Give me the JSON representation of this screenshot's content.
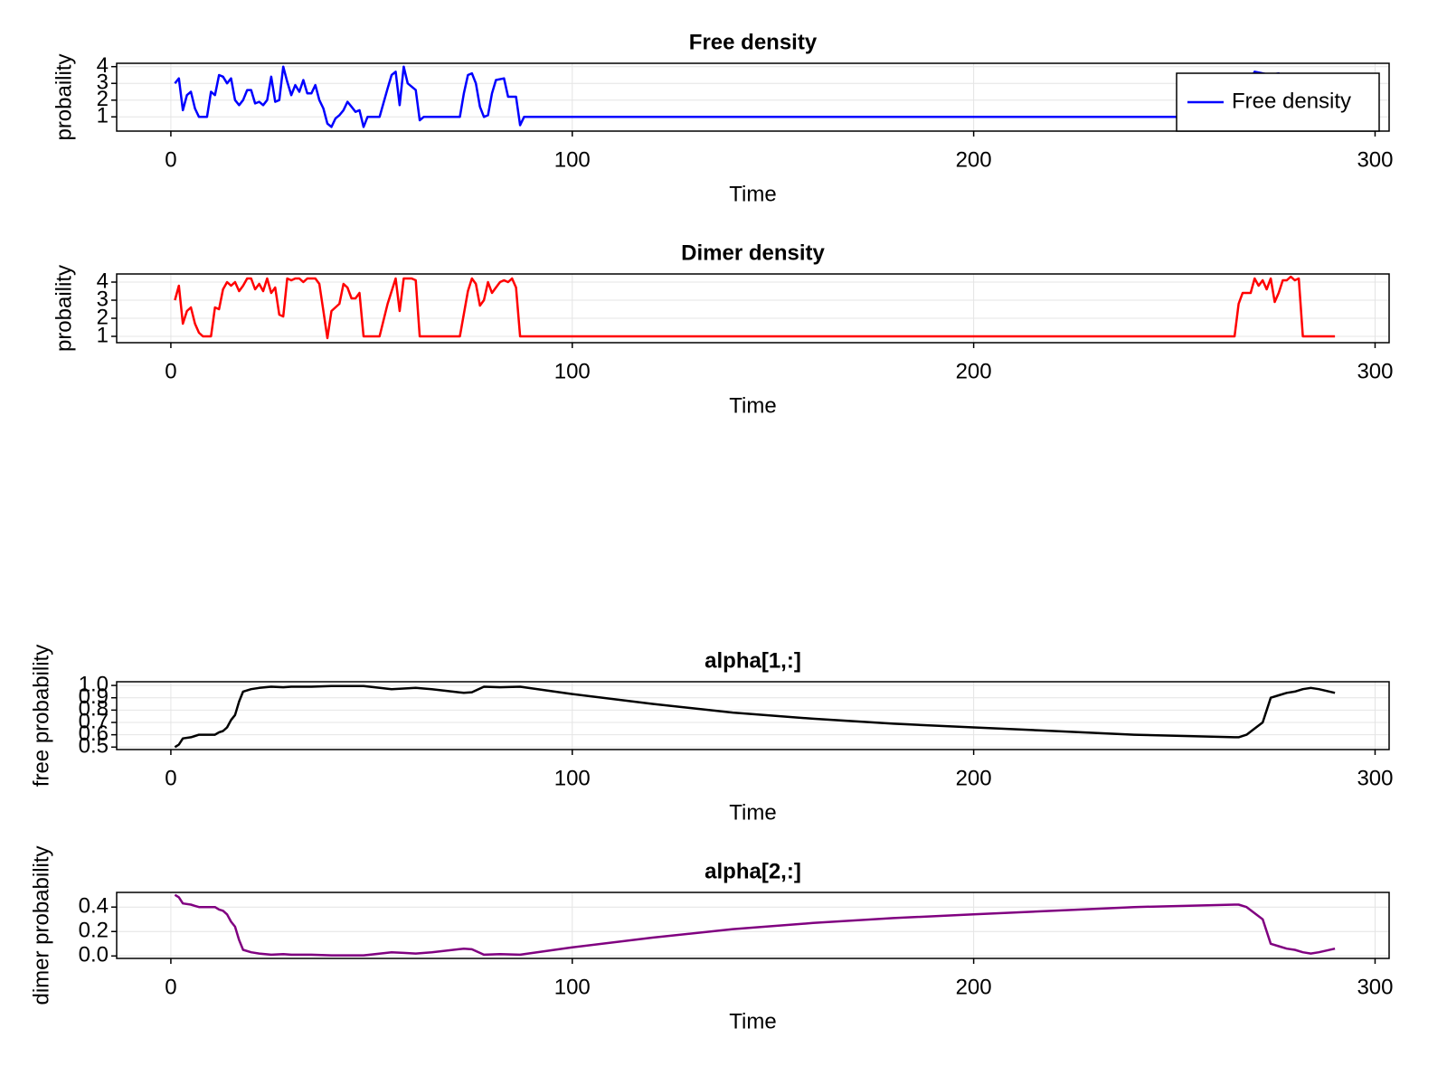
{
  "chart_data": [
    {
      "type": "line",
      "title": "Free density",
      "xlabel": "Time",
      "ylabel": "probaility",
      "xlim": [
        -13.5,
        303.5
      ],
      "xticks": [
        0,
        100,
        200,
        300
      ],
      "ylim": [
        0.15,
        4.2
      ],
      "yticks": [
        1,
        2,
        3,
        4
      ],
      "grid": true,
      "legend": "top-right",
      "x": [
        1,
        2,
        3,
        4,
        5,
        6,
        7,
        8,
        9,
        10,
        11,
        12,
        13,
        14,
        15,
        16,
        17,
        18,
        19,
        20,
        21,
        22,
        23,
        24,
        25,
        26,
        27,
        28,
        29,
        30,
        31,
        32,
        33,
        34,
        35,
        36,
        37,
        38,
        39,
        40,
        41,
        42,
        43,
        44,
        45,
        46,
        47,
        48,
        49,
        52,
        54,
        55,
        56,
        57,
        58,
        59,
        61,
        62,
        63,
        72,
        73,
        74,
        75,
        76,
        77,
        78,
        79,
        80,
        81,
        83,
        84,
        86,
        87,
        88,
        266,
        268,
        270,
        272,
        274,
        276,
        278,
        280,
        282,
        290
      ],
      "series": [
        {
          "name": "Free density",
          "color": "#0000ff",
          "values": [
            3.0,
            3.3,
            1.4,
            2.3,
            2.5,
            1.5,
            1.0,
            1.0,
            1.0,
            2.5,
            2.3,
            3.5,
            3.4,
            3.0,
            3.3,
            2.0,
            1.7,
            2.0,
            2.6,
            2.6,
            1.8,
            1.9,
            1.7,
            2.0,
            3.4,
            1.9,
            2.0,
            4.0,
            3.1,
            2.3,
            2.9,
            2.5,
            3.2,
            2.4,
            2.4,
            2.9,
            2.0,
            1.5,
            0.6,
            0.4,
            0.9,
            1.1,
            1.4,
            1.9,
            1.6,
            1.3,
            1.4,
            0.4,
            1.0,
            1.0,
            2.7,
            3.5,
            3.7,
            1.7,
            4.0,
            3.0,
            2.6,
            0.8,
            1.0,
            1.0,
            2.4,
            3.5,
            3.6,
            3.0,
            1.6,
            1.0,
            1.1,
            2.4,
            3.2,
            3.3,
            2.2,
            2.2,
            0.5,
            1.0,
            1.0,
            2.8,
            3.7,
            3.6,
            3.5,
            3.6,
            3.0,
            2.5,
            1.0,
            1.0
          ]
        }
      ]
    },
    {
      "type": "line",
      "title": "Dimer density",
      "xlabel": "Time",
      "ylabel": "probaility",
      "xlim": [
        -13.5,
        303.5
      ],
      "xticks": [
        0,
        100,
        200,
        300
      ],
      "ylim": [
        0.65,
        4.45
      ],
      "yticks": [
        1,
        2,
        3,
        4
      ],
      "grid": true,
      "x": [
        1,
        2,
        3,
        4,
        5,
        6,
        7,
        8,
        10,
        11,
        12,
        13,
        14,
        15,
        16,
        17,
        18,
        19,
        20,
        21,
        22,
        23,
        24,
        25,
        26,
        27,
        28,
        29,
        30,
        31,
        32,
        33,
        34,
        35,
        36,
        37,
        38,
        39,
        40,
        42,
        43,
        44,
        45,
        46,
        47,
        48,
        52,
        54,
        56,
        57,
        58,
        60,
        61,
        62,
        72,
        74,
        75,
        76,
        77,
        78,
        79,
        80,
        81,
        82,
        83,
        84,
        85,
        86,
        87,
        265,
        266,
        267,
        269,
        270,
        271,
        272,
        273,
        274,
        275,
        276,
        277,
        278,
        279,
        280,
        281,
        282,
        290
      ],
      "series": [
        {
          "color": "#ff0000",
          "values": [
            3.0,
            3.8,
            1.7,
            2.4,
            2.6,
            1.7,
            1.2,
            1.0,
            1.0,
            2.6,
            2.5,
            3.6,
            4.0,
            3.8,
            4.0,
            3.5,
            3.8,
            4.2,
            4.2,
            3.6,
            3.9,
            3.5,
            4.2,
            3.4,
            3.7,
            2.2,
            2.1,
            4.2,
            4.1,
            4.2,
            4.2,
            4.0,
            4.2,
            4.2,
            4.2,
            3.9,
            2.4,
            0.9,
            2.4,
            2.8,
            3.9,
            3.7,
            3.1,
            3.1,
            3.4,
            1.0,
            1.0,
            2.8,
            4.2,
            2.4,
            4.2,
            4.2,
            4.1,
            1.0,
            1.0,
            3.5,
            4.2,
            3.9,
            2.7,
            3.0,
            4.0,
            3.4,
            3.7,
            4.0,
            4.1,
            4.0,
            4.2,
            3.7,
            1.0,
            1.0,
            2.8,
            3.4,
            3.4,
            4.2,
            3.8,
            4.1,
            3.6,
            4.2,
            2.9,
            3.4,
            4.1,
            4.1,
            4.3,
            4.1,
            4.2,
            1.0,
            1.0
          ]
        }
      ]
    },
    {
      "type": "line",
      "title": "alpha[1,:]",
      "xlabel": "Time",
      "ylabel": "free probability",
      "xlim": [
        -13.5,
        303.5
      ],
      "xticks": [
        0,
        100,
        200,
        300
      ],
      "ylim": [
        0.48,
        1.03
      ],
      "yticks": [
        0.5,
        0.6,
        0.7,
        0.8,
        0.9,
        {
          "value": 1,
          "label": "1.0"
        }
      ],
      "grid": true,
      "x": [
        1,
        2,
        3,
        5,
        6,
        7,
        10,
        11,
        12,
        13,
        14,
        15,
        16,
        17,
        18,
        20,
        22,
        25,
        28,
        30,
        35,
        40,
        48,
        55,
        58,
        61,
        65,
        73,
        75,
        78,
        82,
        87,
        100,
        120,
        140,
        160,
        180,
        200,
        220,
        240,
        265,
        266,
        268,
        270,
        272,
        274,
        276,
        278,
        280,
        282,
        284,
        286,
        290
      ],
      "series": [
        {
          "color": "#000000",
          "values": [
            0.5,
            0.52,
            0.57,
            0.58,
            0.59,
            0.6,
            0.6,
            0.6,
            0.62,
            0.63,
            0.66,
            0.72,
            0.76,
            0.87,
            0.95,
            0.97,
            0.98,
            0.99,
            0.985,
            0.99,
            0.99,
            0.995,
            0.995,
            0.97,
            0.975,
            0.98,
            0.97,
            0.94,
            0.945,
            0.99,
            0.985,
            0.99,
            0.93,
            0.85,
            0.78,
            0.73,
            0.69,
            0.66,
            0.63,
            0.6,
            0.58,
            0.58,
            0.6,
            0.65,
            0.7,
            0.9,
            0.92,
            0.94,
            0.95,
            0.97,
            0.98,
            0.97,
            0.94
          ]
        }
      ]
    },
    {
      "type": "line",
      "title": "alpha[2,:]",
      "xlabel": "Time",
      "ylabel": "dimer probability",
      "xlim": [
        -13.5,
        303.5
      ],
      "xticks": [
        0,
        100,
        200,
        300
      ],
      "ylim": [
        -0.02,
        0.52
      ],
      "yticks": [
        {
          "value": 0,
          "label": "0.0"
        },
        0.2,
        0.4
      ],
      "grid": true,
      "x": [
        1,
        2,
        3,
        5,
        6,
        7,
        10,
        11,
        12,
        13,
        14,
        15,
        16,
        17,
        18,
        20,
        22,
        25,
        28,
        30,
        35,
        40,
        48,
        55,
        58,
        61,
        65,
        73,
        75,
        78,
        82,
        87,
        100,
        120,
        140,
        160,
        180,
        200,
        220,
        240,
        265,
        266,
        268,
        270,
        272,
        274,
        276,
        278,
        280,
        282,
        284,
        286,
        290
      ],
      "series": [
        {
          "color": "#800080",
          "values": [
            0.5,
            0.48,
            0.43,
            0.42,
            0.41,
            0.4,
            0.4,
            0.4,
            0.38,
            0.37,
            0.34,
            0.28,
            0.24,
            0.13,
            0.05,
            0.03,
            0.02,
            0.01,
            0.015,
            0.01,
            0.01,
            0.005,
            0.005,
            0.03,
            0.025,
            0.02,
            0.03,
            0.06,
            0.055,
            0.01,
            0.015,
            0.01,
            0.07,
            0.15,
            0.22,
            0.27,
            0.31,
            0.34,
            0.37,
            0.4,
            0.42,
            0.42,
            0.4,
            0.35,
            0.3,
            0.1,
            0.08,
            0.06,
            0.05,
            0.03,
            0.02,
            0.03,
            0.06
          ]
        }
      ]
    }
  ]
}
